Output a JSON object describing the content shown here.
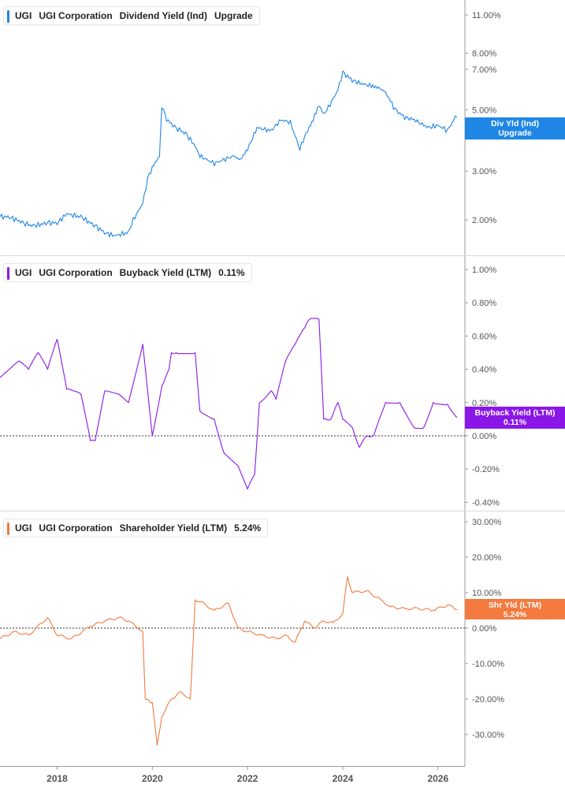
{
  "colors": {
    "dividend": "#1f86e5",
    "buyback": "#8a17e8",
    "shareholder": "#f47a3f",
    "grid": "#d9d9d9",
    "axis_text": "#555555",
    "zero": "#333333"
  },
  "x_axis": {
    "ticks": [
      "2018",
      "2020",
      "2022",
      "2024",
      "2026"
    ],
    "range": [
      2016.8,
      2026.5
    ]
  },
  "panels": [
    {
      "id": "dividend",
      "legend": {
        "ticker": "UGI",
        "company": "UGI Corporation",
        "metric": "Dividend Yield (Ind)",
        "value": "Upgrade"
      },
      "badge": {
        "line1": "Div Yld (Ind)",
        "line2": "Upgrade"
      },
      "y_ticks": [
        "11.00%",
        "8.00%",
        "7.00%",
        "5.00%",
        "3.00%",
        "2.00%"
      ]
    },
    {
      "id": "buyback",
      "legend": {
        "ticker": "UGI",
        "company": "UGI Corporation",
        "metric": "Buyback Yield (LTM)",
        "value": "0.11%"
      },
      "badge": {
        "line1": "Buyback Yield (LTM)",
        "line2": "0.11%"
      },
      "y_ticks": [
        "1.00%",
        "0.80%",
        "0.60%",
        "0.40%",
        "0.20%",
        "0.00%",
        "-0.20%",
        "-0.40%"
      ]
    },
    {
      "id": "shareholder",
      "legend": {
        "ticker": "UGI",
        "company": "UGI Corporation",
        "metric": "Shareholder Yield (LTM)",
        "value": "5.24%"
      },
      "badge": {
        "line1": "Shr Yld (LTM)",
        "line2": "5.24%"
      },
      "y_ticks": [
        "30.00%",
        "20.00%",
        "10.00%",
        "0.00%",
        "-10.00%",
        "-20.00%",
        "-30.00%"
      ]
    }
  ],
  "chart_data": [
    {
      "type": "line",
      "title": "UGI Corporation Dividend Yield (Ind)",
      "y_scale": "log",
      "ylim": [
        1.6,
        12.0
      ],
      "series": [
        {
          "name": "Dividend Yield (Ind)",
          "unit": "%",
          "x": [
            2016.8,
            2017.0,
            2017.3,
            2017.5,
            2017.8,
            2018.0,
            2018.2,
            2018.5,
            2018.8,
            2019.0,
            2019.2,
            2019.5,
            2019.6,
            2019.8,
            2019.9,
            2020.0,
            2020.15,
            2020.2,
            2020.3,
            2020.5,
            2020.7,
            2020.9,
            2021.0,
            2021.3,
            2021.5,
            2021.7,
            2021.85,
            2022.0,
            2022.2,
            2022.5,
            2022.7,
            2022.9,
            2023.1,
            2023.2,
            2023.35,
            2023.5,
            2023.6,
            2023.7,
            2023.9,
            2024.0,
            2024.2,
            2024.4,
            2024.6,
            2024.75,
            2024.9,
            2025.1,
            2025.3,
            2025.5,
            2025.7,
            2025.8,
            2026.0,
            2026.2,
            2026.4
          ],
          "y": [
            2.05,
            2.05,
            1.95,
            1.9,
            1.95,
            1.95,
            2.1,
            2.05,
            1.9,
            1.8,
            1.75,
            1.8,
            2.0,
            2.3,
            2.8,
            3.1,
            3.4,
            5.2,
            4.6,
            4.3,
            4.1,
            3.7,
            3.4,
            3.2,
            3.3,
            3.4,
            3.3,
            3.6,
            4.3,
            4.2,
            4.6,
            4.5,
            3.6,
            4.0,
            4.5,
            5.2,
            4.8,
            5.1,
            5.9,
            6.8,
            6.4,
            6.2,
            6.1,
            6.0,
            5.8,
            5.0,
            4.7,
            4.6,
            4.4,
            4.3,
            4.4,
            4.2,
            4.8
          ]
        }
      ]
    },
    {
      "type": "line",
      "title": "UGI Corporation Buyback Yield (LTM)",
      "ylim": [
        -0.42,
        1.02
      ],
      "series": [
        {
          "name": "Buyback Yield (LTM)",
          "unit": "%",
          "x": [
            2016.8,
            2017.2,
            2017.4,
            2017.6,
            2017.8,
            2018.0,
            2018.2,
            2018.5,
            2018.7,
            2018.8,
            2019.0,
            2019.3,
            2019.5,
            2019.8,
            2020.0,
            2020.2,
            2020.35,
            2020.4,
            2020.5,
            2020.9,
            2021.0,
            2021.3,
            2021.5,
            2021.8,
            2021.9,
            2022.0,
            2022.15,
            2022.25,
            2022.5,
            2022.6,
            2022.8,
            2023.0,
            2023.2,
            2023.3,
            2023.5,
            2023.6,
            2023.75,
            2023.9,
            2024.0,
            2024.2,
            2024.35,
            2024.5,
            2024.65,
            2024.9,
            2025.2,
            2025.5,
            2025.7,
            2025.9,
            2026.2,
            2026.4
          ],
          "y": [
            0.35,
            0.45,
            0.4,
            0.5,
            0.4,
            0.58,
            0.28,
            0.25,
            -0.03,
            -0.03,
            0.27,
            0.25,
            0.2,
            0.55,
            0.0,
            0.3,
            0.4,
            0.5,
            0.5,
            0.5,
            0.15,
            0.1,
            -0.1,
            -0.18,
            -0.25,
            -0.32,
            -0.23,
            0.2,
            0.27,
            0.22,
            0.45,
            0.55,
            0.65,
            0.7,
            0.7,
            0.1,
            0.1,
            0.2,
            0.1,
            0.05,
            -0.07,
            0.0,
            0.0,
            0.2,
            0.2,
            0.05,
            0.05,
            0.2,
            0.19,
            0.11
          ]
        }
      ]
    },
    {
      "type": "line",
      "title": "UGI Corporation Shareholder Yield (LTM)",
      "ylim": [
        -34,
        33
      ],
      "series": [
        {
          "name": "Shareholder Yield (LTM)",
          "unit": "%",
          "x": [
            2016.8,
            2017.1,
            2017.4,
            2017.8,
            2018.0,
            2018.3,
            2018.7,
            2019.0,
            2019.3,
            2019.5,
            2019.7,
            2019.8,
            2019.85,
            2020.0,
            2020.1,
            2020.2,
            2020.4,
            2020.6,
            2020.8,
            2020.9,
            2021.0,
            2021.3,
            2021.6,
            2021.8,
            2022.0,
            2022.3,
            2022.6,
            2022.8,
            2023.0,
            2023.2,
            2023.4,
            2023.6,
            2023.8,
            2024.0,
            2024.1,
            2024.2,
            2024.5,
            2024.8,
            2025.0,
            2025.3,
            2025.6,
            2025.9,
            2026.2,
            2026.4
          ],
          "y": [
            -3.0,
            -1.0,
            -2.0,
            3.0,
            -2.0,
            -3.0,
            0.5,
            2.0,
            3.0,
            2.0,
            0.0,
            -1.0,
            -20.0,
            -21.0,
            -33.0,
            -25.0,
            -20.0,
            -18.0,
            -20.0,
            8.0,
            7.5,
            5.0,
            7.0,
            0.0,
            -1.0,
            -2.0,
            -3.0,
            -2.0,
            -4.0,
            2.0,
            0.0,
            2.0,
            1.5,
            4.0,
            14.5,
            10.0,
            10.5,
            8.0,
            6.0,
            5.5,
            5.5,
            5.0,
            6.5,
            5.24
          ]
        }
      ]
    }
  ]
}
